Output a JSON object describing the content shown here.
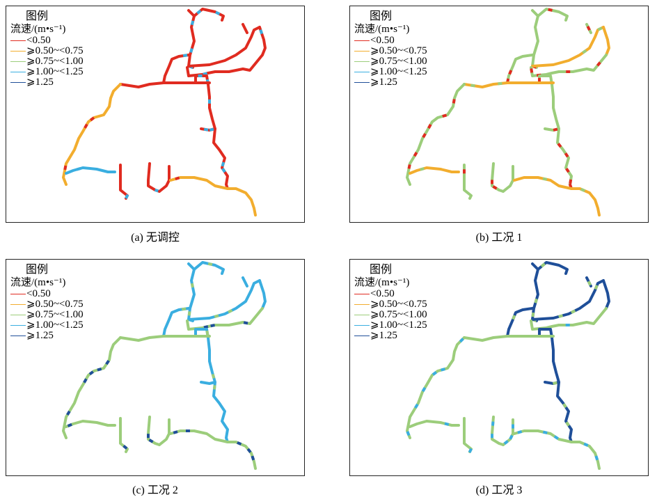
{
  "legend": {
    "title": "图例",
    "unit": "流速/(m•s⁻¹)",
    "items": [
      {
        "label": "<0.50",
        "color": "#e02b20"
      },
      {
        "label": "⩾0.50~<0.75",
        "color": "#f2ad2e"
      },
      {
        "label": "⩾0.75~<1.00",
        "color": "#9ccd7b"
      },
      {
        "label": "⩾1.00~<1.25",
        "color": "#3aaee0"
      },
      {
        "label": "⩾1.25",
        "color": "#1f4f99"
      }
    ]
  },
  "panels": [
    {
      "caption": "(a) 无调控",
      "scenario": "no-control",
      "dominant_class": "<0.50",
      "secondary_class": "⩾0.50~<0.75"
    },
    {
      "caption": "(b) 工况 1",
      "scenario": "condition-1",
      "dominant_class": "⩾0.75~<1.00",
      "secondary_class": "⩾0.50~<0.75"
    },
    {
      "caption": "(c) 工况 2",
      "scenario": "condition-2",
      "dominant_class": "⩾0.75~<1.00",
      "secondary_class": "⩾1.00~<1.25"
    },
    {
      "caption": "(d) 工况 3",
      "scenario": "condition-3",
      "dominant_class": "⩾0.75~<1.00",
      "secondary_class": "⩾1.25"
    }
  ]
}
